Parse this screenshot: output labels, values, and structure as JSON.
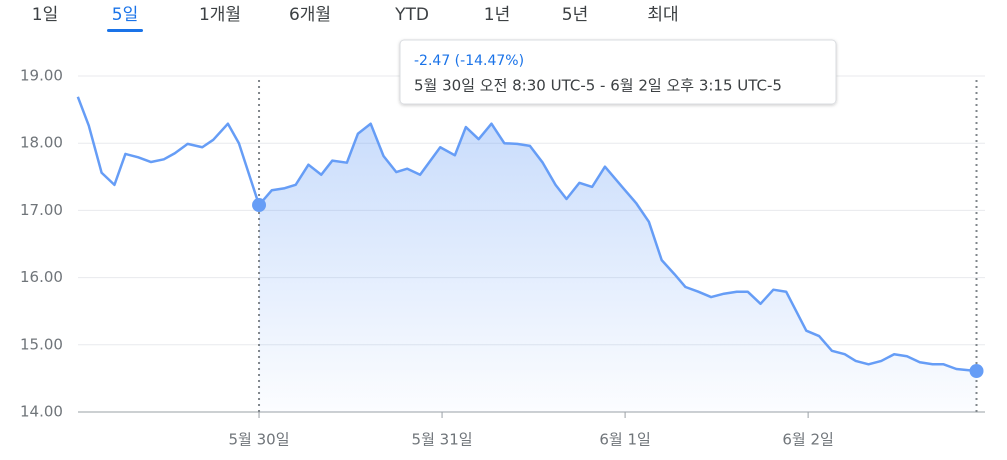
{
  "tabs": {
    "items": [
      "1일",
      "5일",
      "1개월",
      "6개월",
      "YTD",
      "1년",
      "5년",
      "최대"
    ],
    "active": 1
  },
  "tooltip": {
    "change": "-2.47 (-14.47%)",
    "range": "5월 30일 오전 8:30 UTC-5 - 6월 2일 오후 3:15 UTC-5"
  },
  "chart_data": {
    "type": "line",
    "x": [
      -0.99,
      -0.93,
      -0.86,
      -0.79,
      -0.73,
      -0.66,
      -0.59,
      -0.52,
      -0.46,
      -0.39,
      -0.31,
      -0.25,
      -0.17,
      -0.11,
      0,
      0.07,
      0.14,
      0.2,
      0.27,
      0.34,
      0.4,
      0.48,
      0.54,
      0.61,
      0.68,
      0.75,
      0.81,
      0.88,
      0.99,
      1.07,
      1.13,
      1.2,
      1.27,
      1.34,
      1.41,
      1.48,
      1.55,
      1.62,
      1.68,
      1.75,
      1.82,
      1.89,
      1.99,
      2.06,
      2.13,
      2.2,
      2.27,
      2.33,
      2.4,
      2.47,
      2.54,
      2.61,
      2.67,
      2.74,
      2.81,
      2.88,
      2.99,
      3.06,
      3.13,
      3.2,
      3.26,
      3.33,
      3.4,
      3.47,
      3.54,
      3.61,
      3.68,
      3.74,
      3.81,
      3.92
    ],
    "series": [
      {
        "color": "#669df6",
        "values": [
          18.69,
          18.26,
          17.56,
          17.38,
          17.84,
          17.79,
          17.72,
          17.76,
          17.85,
          17.99,
          17.94,
          18.05,
          18.29,
          18.0,
          17.08,
          17.3,
          17.33,
          17.38,
          17.68,
          17.53,
          17.74,
          17.71,
          18.14,
          18.29,
          17.81,
          17.57,
          17.62,
          17.53,
          17.94,
          17.82,
          18.24,
          18.06,
          18.29,
          18.0,
          17.99,
          17.96,
          17.71,
          17.38,
          17.17,
          17.41,
          17.35,
          17.65,
          17.33,
          17.11,
          16.83,
          16.26,
          16.05,
          15.86,
          15.79,
          15.71,
          15.76,
          15.79,
          15.79,
          15.61,
          15.82,
          15.79,
          15.21,
          15.13,
          14.91,
          14.86,
          14.76,
          14.71,
          14.76,
          14.86,
          14.83,
          14.74,
          14.71,
          14.71,
          14.64,
          14.61
        ]
      }
    ],
    "xlim": [
      -1,
      3.95
    ],
    "xticks": [
      {
        "value": 0,
        "label": "5월 30일"
      },
      {
        "value": 1,
        "label": "5월 31일"
      },
      {
        "value": 2,
        "label": "6월 1일"
      },
      {
        "value": 3,
        "label": "6월 2일"
      }
    ],
    "ylim": [
      14,
      19
    ],
    "yticks": [
      {
        "value": 14,
        "label": "14.00"
      },
      {
        "value": 15,
        "label": "15.00"
      },
      {
        "value": 16,
        "label": "16.00"
      },
      {
        "value": 17,
        "label": "17.00"
      },
      {
        "value": 18,
        "label": "18.00"
      },
      {
        "value": 19,
        "label": "19.00"
      }
    ],
    "selected_range": [
      0,
      3.92
    ],
    "grid": true
  }
}
